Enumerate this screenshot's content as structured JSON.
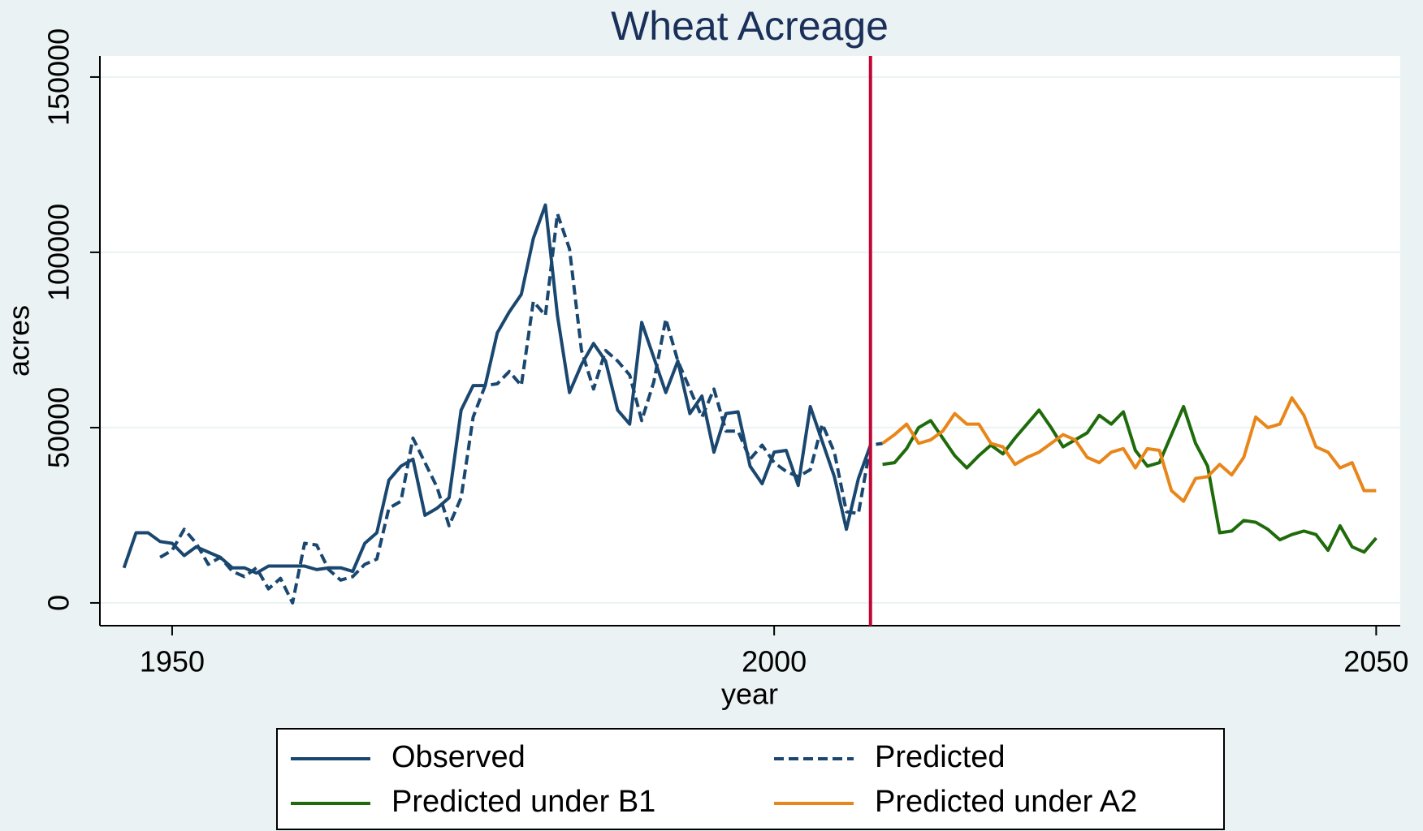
{
  "chart_data": {
    "type": "line",
    "title": "Wheat Acreage",
    "x_label": "year",
    "y_label": "acres",
    "xlim": [
      1944,
      2052
    ],
    "ylim": [
      -6500,
      156000
    ],
    "xticks": [
      1950,
      2000,
      2050
    ],
    "yticks": [
      0,
      50000,
      100000,
      150000
    ],
    "grid": true,
    "vline": {
      "x": 2008,
      "color": "#c10534"
    },
    "legend": "bottom",
    "series": [
      {
        "name": "Observed",
        "color": "#1a476f",
        "dash": false,
        "x": [
          1946,
          1947,
          1948,
          1949,
          1950,
          1951,
          1952,
          1953,
          1954,
          1955,
          1956,
          1957,
          1958,
          1959,
          1960,
          1961,
          1962,
          1963,
          1964,
          1965,
          1966,
          1967,
          1968,
          1969,
          1970,
          1971,
          1972,
          1973,
          1974,
          1975,
          1976,
          1977,
          1978,
          1979,
          1980,
          1981,
          1982,
          1983,
          1984,
          1985,
          1986,
          1987,
          1988,
          1989,
          1990,
          1991,
          1992,
          1993,
          1994,
          1995,
          1996,
          1997,
          1998,
          1999,
          2000,
          2001,
          2002,
          2003,
          2004,
          2005,
          2006,
          2007,
          2008
        ],
        "values": [
          10000,
          20000,
          20000,
          17500,
          17000,
          13500,
          16000,
          14500,
          13000,
          10000,
          10000,
          8500,
          10500,
          10500,
          10500,
          10500,
          9500,
          10000,
          10000,
          9000,
          17000,
          20000,
          35000,
          39000,
          41000,
          25000,
          27000,
          30000,
          55000,
          62000,
          62000,
          77000,
          83000,
          88000,
          104000,
          113500,
          82000,
          60000,
          68000,
          74000,
          69000,
          55000,
          51000,
          80000,
          70000,
          60000,
          69000,
          54000,
          59000,
          43000,
          54000,
          54500,
          39000,
          34000,
          43000,
          43500,
          33500,
          56000,
          46000,
          36000,
          21000,
          35500,
          45000
        ]
      },
      {
        "name": "Predicted",
        "color": "#1a476f",
        "dash": true,
        "x": [
          1949,
          1950,
          1951,
          1952,
          1953,
          1954,
          1955,
          1956,
          1957,
          1958,
          1959,
          1960,
          1961,
          1962,
          1963,
          1964,
          1965,
          1966,
          1967,
          1968,
          1969,
          1970,
          1971,
          1972,
          1973,
          1974,
          1975,
          1976,
          1977,
          1978,
          1979,
          1980,
          1981,
          1982,
          1983,
          1984,
          1985,
          1986,
          1987,
          1988,
          1989,
          1990,
          1991,
          1992,
          1993,
          1994,
          1995,
          1996,
          1997,
          1998,
          1999,
          2000,
          2001,
          2002,
          2003,
          2004,
          2005,
          2006,
          2007,
          2008,
          2009
        ],
        "values": [
          13000,
          15000,
          21000,
          17000,
          11000,
          13000,
          9000,
          7500,
          10000,
          4000,
          7000,
          0,
          17000,
          16500,
          9500,
          6500,
          7500,
          11000,
          12500,
          27000,
          29000,
          47000,
          40000,
          33000,
          22000,
          30000,
          53000,
          62000,
          62500,
          66000,
          62000,
          86000,
          82000,
          111000,
          101000,
          72000,
          61000,
          72000,
          69000,
          65000,
          52000,
          63000,
          81000,
          69000,
          61000,
          53000,
          61000,
          49000,
          49000,
          41000,
          45000,
          40000,
          37500,
          36000,
          38000,
          51000,
          43000,
          26000,
          25500,
          45000,
          45500
        ]
      },
      {
        "name": "Predicted under B1",
        "color": "#1f6b0c",
        "dash": false,
        "x": [
          2009,
          2010,
          2011,
          2012,
          2013,
          2014,
          2015,
          2016,
          2017,
          2018,
          2019,
          2020,
          2021,
          2022,
          2023,
          2024,
          2025,
          2026,
          2027,
          2028,
          2029,
          2030,
          2031,
          2032,
          2033,
          2034,
          2035,
          2036,
          2037,
          2038,
          2039,
          2040,
          2041,
          2042,
          2043,
          2044,
          2045,
          2046,
          2047,
          2048,
          2049,
          2050
        ],
        "values": [
          39500,
          40000,
          44000,
          50000,
          52000,
          47000,
          42000,
          38500,
          42000,
          45000,
          42500,
          47000,
          51000,
          55000,
          50000,
          44500,
          46500,
          48500,
          53500,
          51000,
          54500,
          43500,
          39000,
          40000,
          48000,
          56000,
          45500,
          39000,
          20000,
          20500,
          23500,
          23000,
          21000,
          18000,
          19500,
          20500,
          19500,
          15000,
          22000,
          16000,
          14500,
          18500
        ]
      },
      {
        "name": "Predicted under A2",
        "color": "#e8861a",
        "dash": false,
        "x": [
          2009,
          2010,
          2011,
          2012,
          2013,
          2014,
          2015,
          2016,
          2017,
          2018,
          2019,
          2020,
          2021,
          2022,
          2023,
          2024,
          2025,
          2026,
          2027,
          2028,
          2029,
          2030,
          2031,
          2032,
          2033,
          2034,
          2035,
          2036,
          2037,
          2038,
          2039,
          2040,
          2041,
          2042,
          2043,
          2044,
          2045,
          2046,
          2047,
          2048,
          2049,
          2050
        ],
        "values": [
          45500,
          48000,
          51000,
          45500,
          46500,
          49000,
          54000,
          51000,
          51000,
          45500,
          44500,
          39500,
          41500,
          43000,
          45500,
          48000,
          46500,
          41500,
          40000,
          43000,
          44000,
          38500,
          44000,
          43500,
          32000,
          29000,
          35500,
          36000,
          39500,
          36500,
          41500,
          53000,
          50000,
          51000,
          58500,
          53500,
          44500,
          43000,
          38500,
          40000,
          32000,
          32000
        ]
      }
    ]
  }
}
